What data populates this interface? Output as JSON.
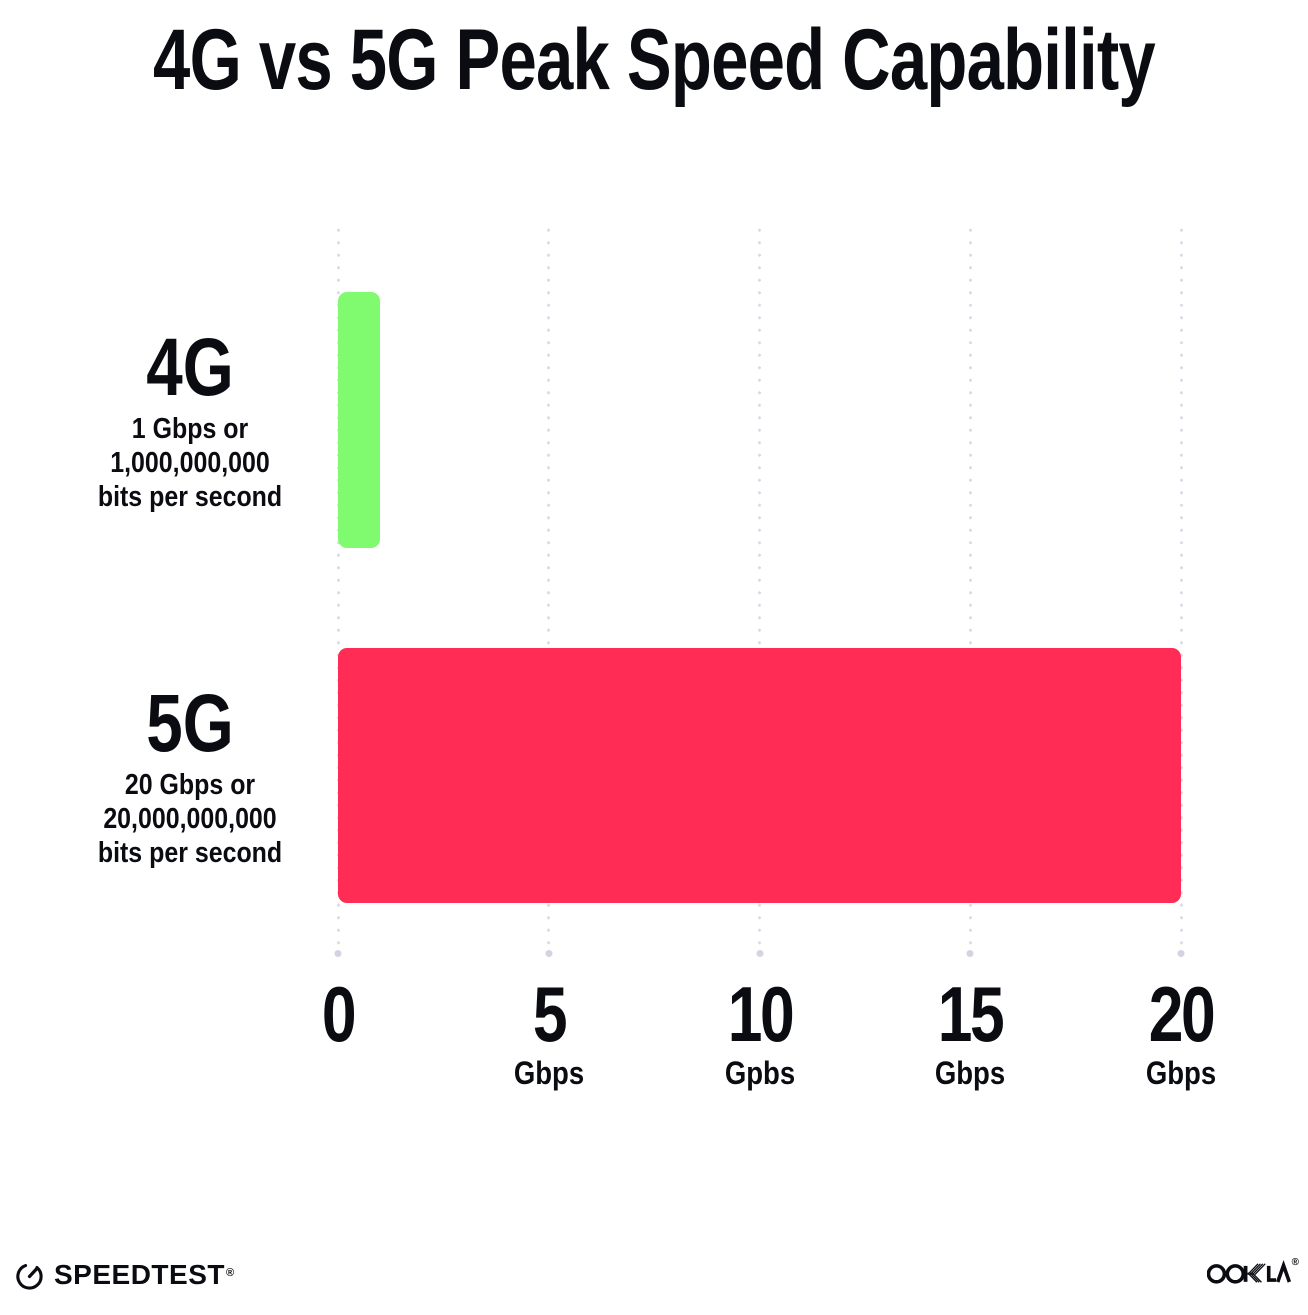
{
  "title": "4G vs 5G Peak Speed Capability",
  "chart_data": {
    "type": "bar",
    "orientation": "horizontal",
    "title": "4G vs 5G Peak Speed Capability",
    "categories": [
      "4G",
      "5G"
    ],
    "values": [
      1,
      20
    ],
    "values_unit": "Gbps",
    "bar_colors": [
      "#80fa6e",
      "#ff2d55"
    ],
    "xlim": [
      0,
      20
    ],
    "grid": "vertical-dotted",
    "legend": "none",
    "row_labels": [
      {
        "name": "4G",
        "desc_lines": [
          "1 Gbps or",
          "1,000,000,000",
          "bits per second"
        ]
      },
      {
        "name": "5G",
        "desc_lines": [
          "20 Gbps or",
          "20,000,000,000",
          "bits per second"
        ]
      }
    ],
    "x_ticks": [
      {
        "value": "0",
        "unit": ""
      },
      {
        "value": "5",
        "unit": "Gbps"
      },
      {
        "value": "10",
        "unit": "Gpbs"
      },
      {
        "value": "15",
        "unit": "Gbps"
      },
      {
        "value": "20",
        "unit": "Gbps"
      }
    ]
  },
  "footer": {
    "speedtest_label": "SPEEDTEST",
    "speedtest_trademark": "®",
    "ookla_label": "OOKLA",
    "ookla_trademark": "®"
  },
  "colors": {
    "background": "#ffffff",
    "text": "#0b0c12",
    "grid_dot": "#d9dbe7",
    "bar_4g_green": "#80fa6e",
    "bar_5g_pink": "#ff2d55"
  }
}
